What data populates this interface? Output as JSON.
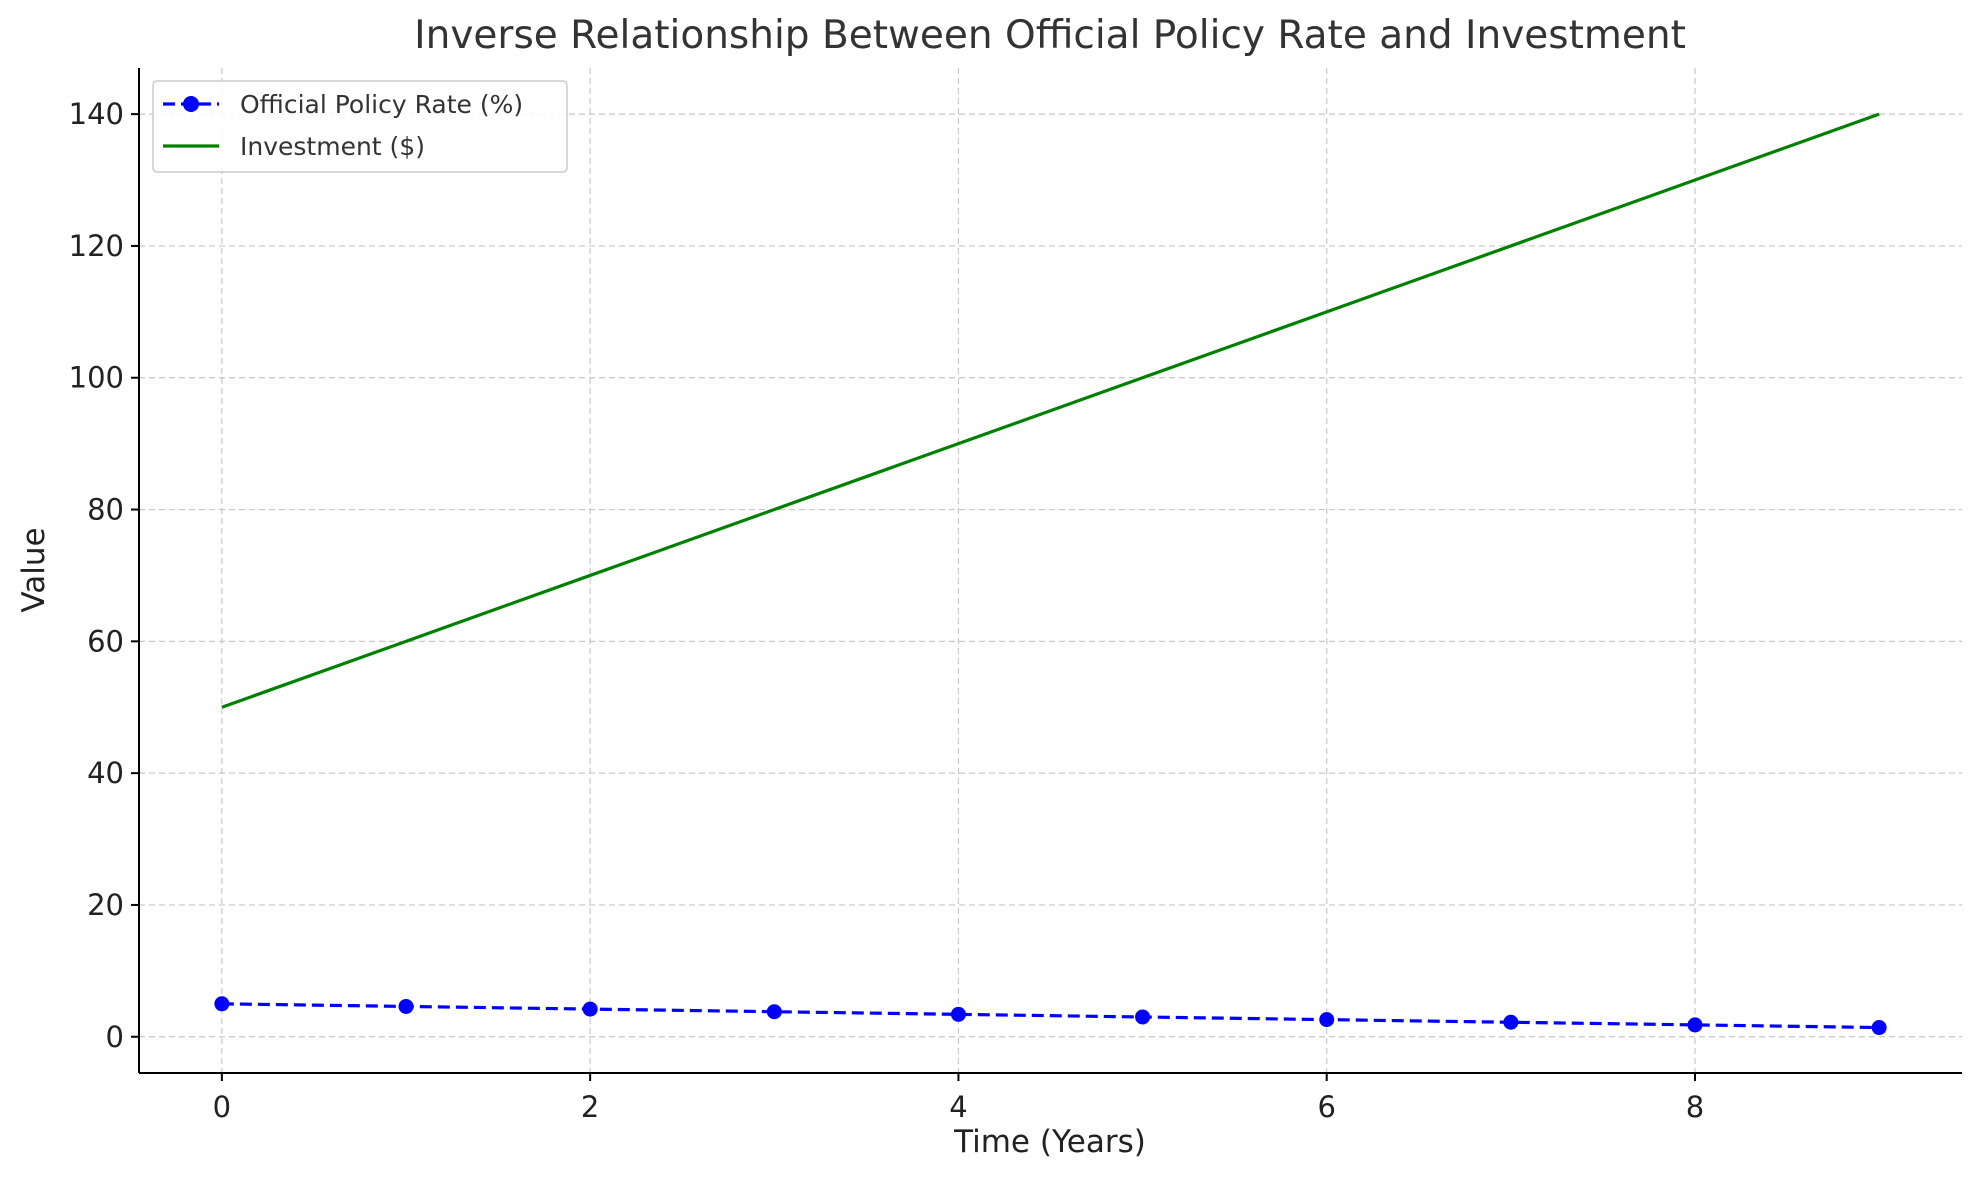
{
  "chart_data": {
    "type": "line",
    "title": "Inverse Relationship Between Official Policy Rate and Investment",
    "xlabel": "Time (Years)",
    "ylabel": "Value",
    "xlim": [
      -0.45,
      9.45
    ],
    "ylim": [
      -5.5,
      147
    ],
    "xticks": [
      0,
      2,
      4,
      6,
      8
    ],
    "yticks": [
      0,
      20,
      40,
      60,
      80,
      100,
      120,
      140
    ],
    "grid": true,
    "legend_position": "top-left",
    "x": [
      0,
      1,
      2,
      3,
      4,
      5,
      6,
      7,
      8,
      9
    ],
    "series": [
      {
        "name": "Official Policy Rate (%)",
        "values": [
          5.0,
          4.6,
          4.2,
          3.8,
          3.4,
          3.0,
          2.6,
          2.2,
          1.8,
          1.4
        ],
        "color": "#0000ff",
        "style": "dashed",
        "marker": "circle"
      },
      {
        "name": "Investment ($)",
        "values": [
          50,
          60,
          70,
          80,
          90,
          100,
          110,
          120,
          130,
          140
        ],
        "color": "#008000",
        "style": "solid",
        "marker": "none"
      }
    ]
  }
}
